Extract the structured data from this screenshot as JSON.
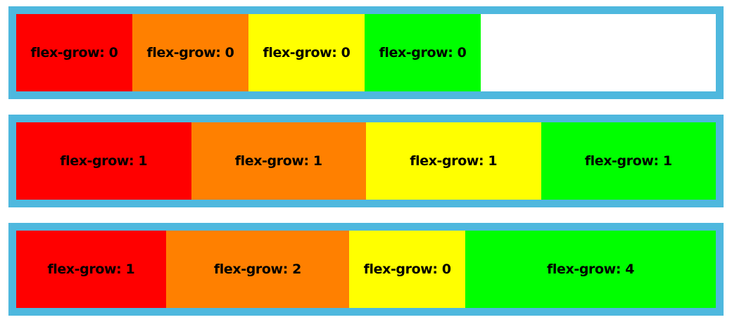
{
  "colors": {
    "border": "#4eb8de",
    "red": "#ff0000",
    "orange": "#ff8000",
    "yellow": "#ffff00",
    "green": "#00ff00"
  },
  "rows": [
    {
      "items": [
        {
          "label": "flex-grow: 0",
          "grow": 0,
          "color": "#ff0000"
        },
        {
          "label": "flex-grow: 0",
          "grow": 0,
          "color": "#ff8000"
        },
        {
          "label": "flex-grow: 0",
          "grow": 0,
          "color": "#ffff00"
        },
        {
          "label": "flex-grow: 0",
          "grow": 0,
          "color": "#00ff00"
        }
      ]
    },
    {
      "items": [
        {
          "label": "flex-grow: 1",
          "grow": 1,
          "color": "#ff0000"
        },
        {
          "label": "flex-grow: 1",
          "grow": 1,
          "color": "#ff8000"
        },
        {
          "label": "flex-grow: 1",
          "grow": 1,
          "color": "#ffff00"
        },
        {
          "label": "flex-grow: 1",
          "grow": 1,
          "color": "#00ff00"
        }
      ]
    },
    {
      "items": [
        {
          "label": "flex-grow: 1",
          "grow": 1,
          "color": "#ff0000"
        },
        {
          "label": "flex-grow: 2",
          "grow": 2,
          "color": "#ff8000"
        },
        {
          "label": "flex-grow: 0",
          "grow": 0,
          "color": "#ffff00"
        },
        {
          "label": "flex-grow: 4",
          "grow": 4,
          "color": "#00ff00"
        }
      ]
    }
  ]
}
